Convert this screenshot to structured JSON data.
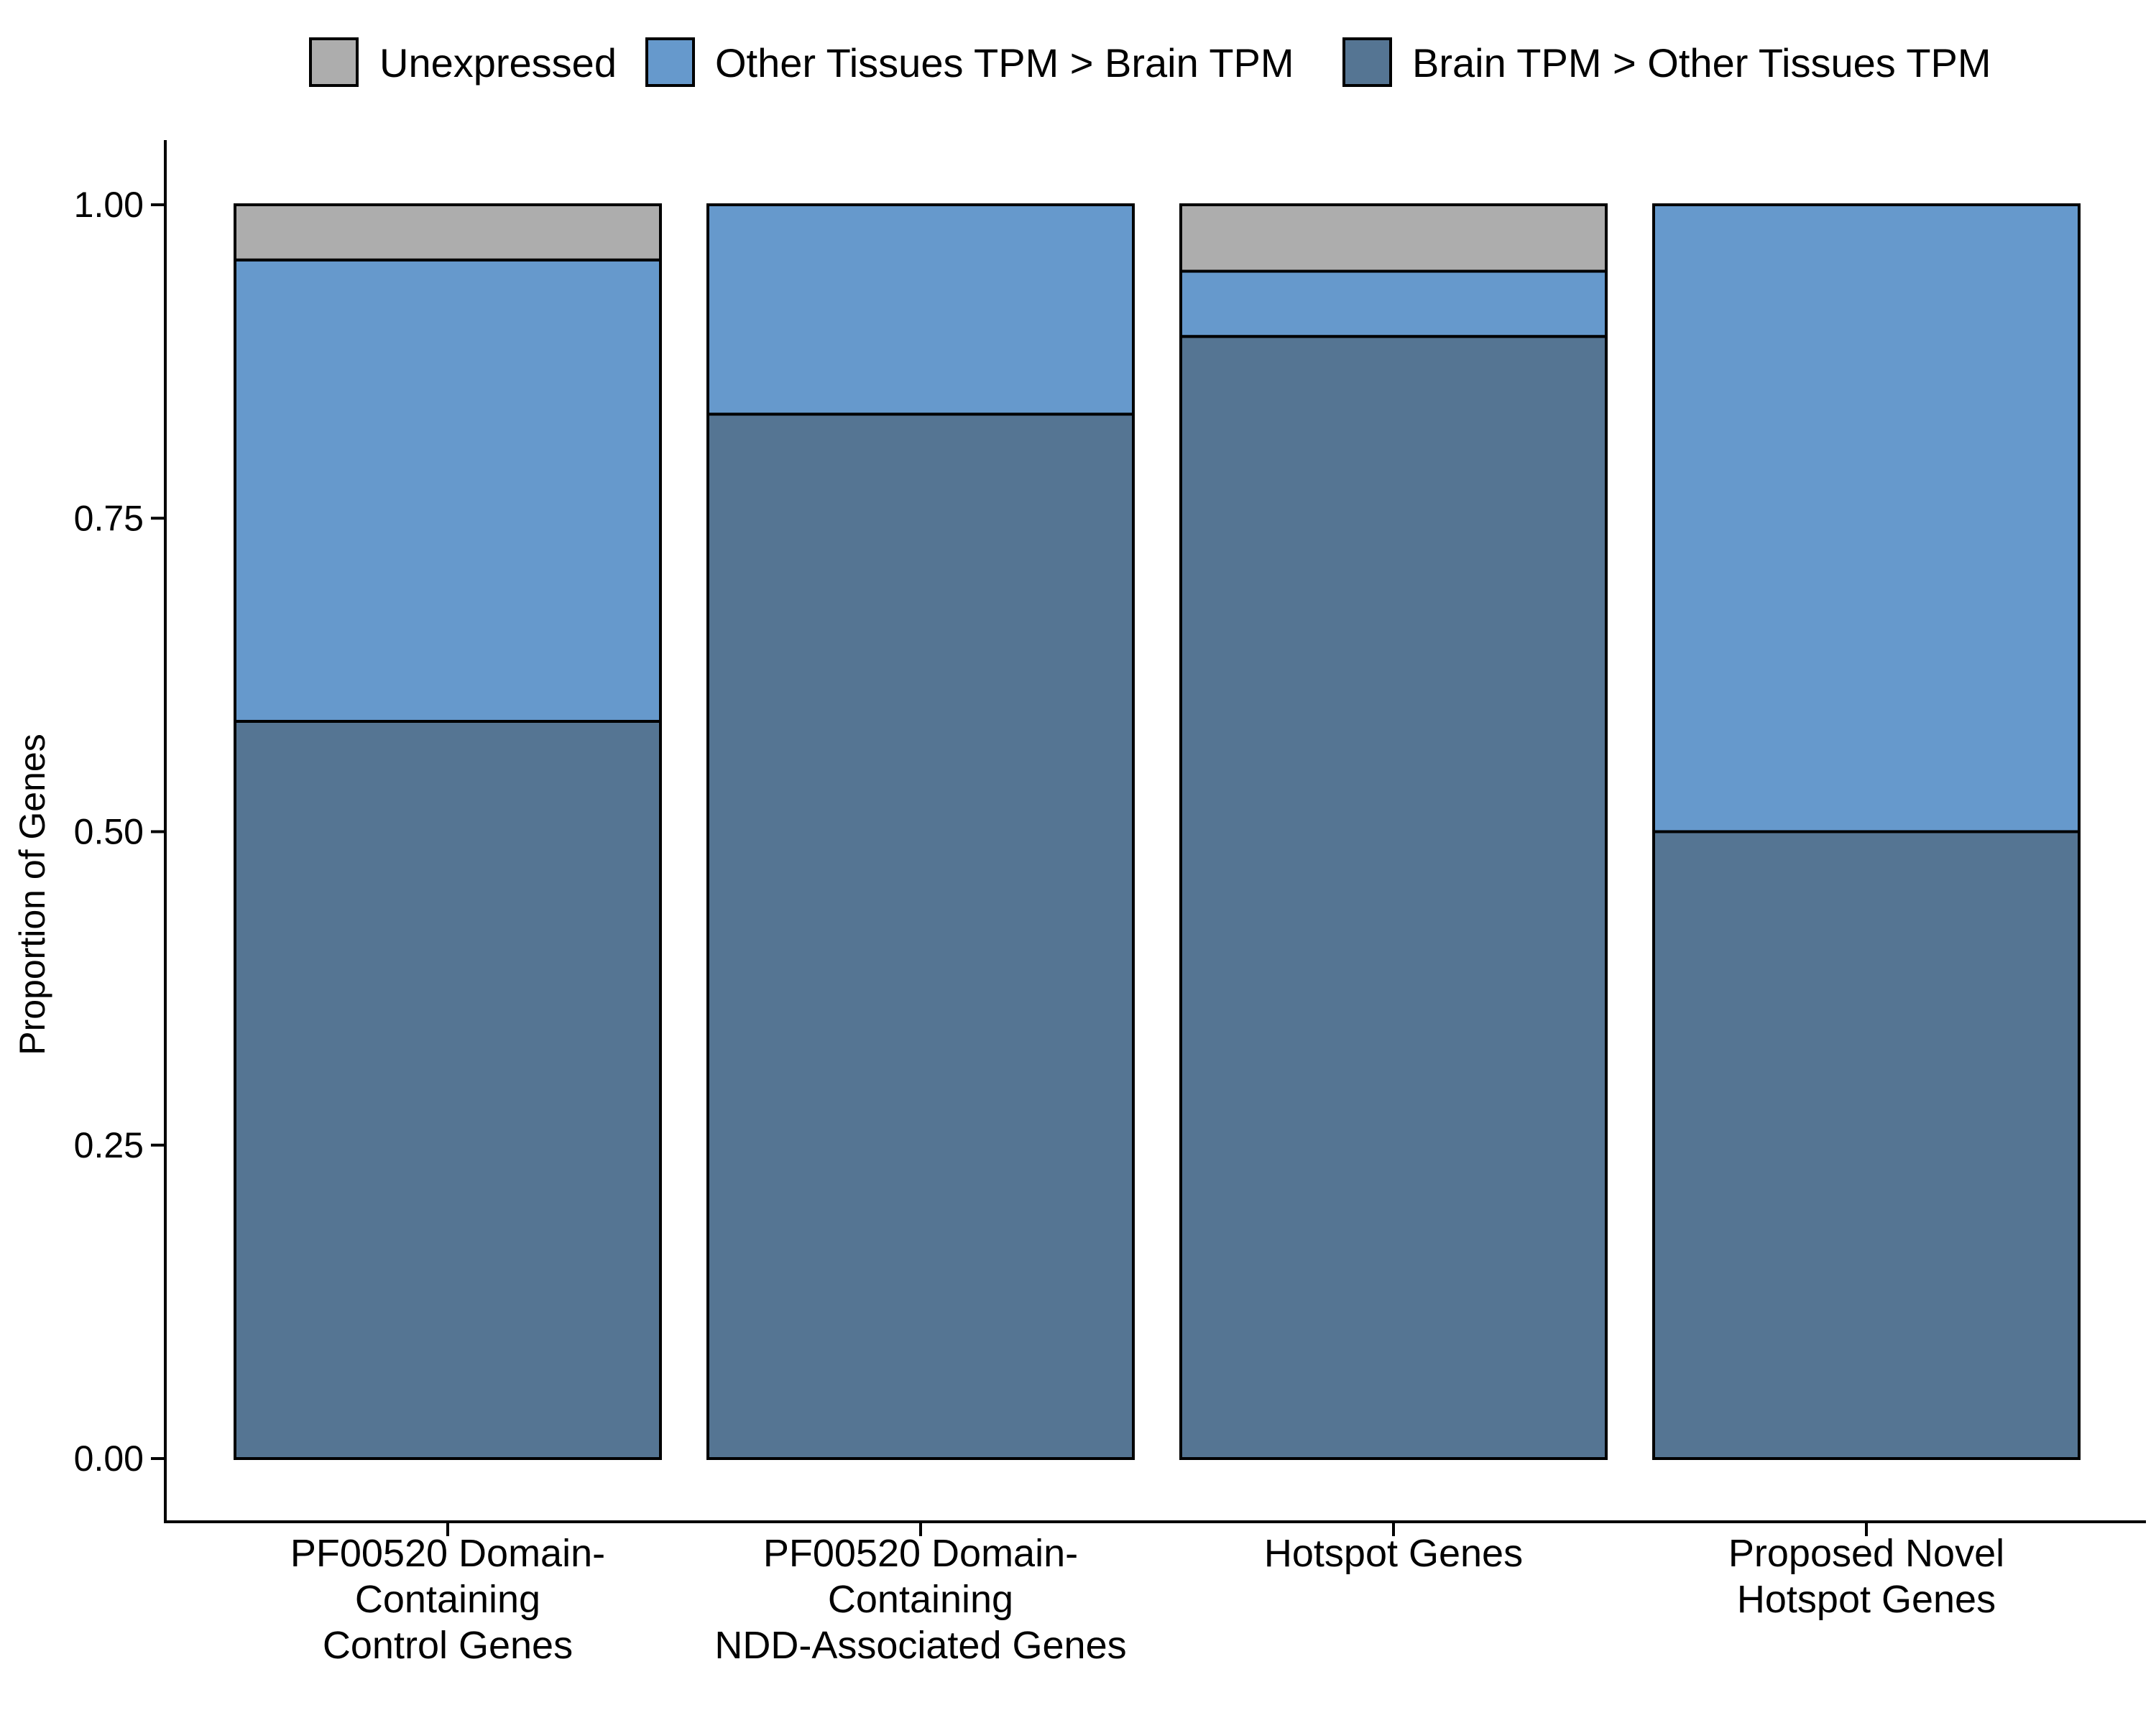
{
  "chart_data": {
    "type": "bar",
    "stacked": true,
    "categories": [
      [
        "PF00520 Domain-",
        "Containing",
        "Control Genes"
      ],
      [
        "PF00520 Domain-",
        "Containing",
        "NDD-Associated Genes"
      ],
      [
        "Hotspot Genes"
      ],
      [
        "Proposed Novel",
        "Hotspot Genes"
      ]
    ],
    "series": [
      {
        "name": "Brain TPM > Other Tissues TPM",
        "color": "#557593",
        "values": [
          0.588,
          0.833,
          0.895,
          0.5
        ]
      },
      {
        "name": "Other Tissues TPM > Brain TPM",
        "color": "#6699cc",
        "values": [
          0.368,
          0.167,
          0.052,
          0.5
        ]
      },
      {
        "name": "Unexpressed",
        "color": "#adadad",
        "values": [
          0.044,
          0.0,
          0.053,
          0.0
        ]
      }
    ],
    "legend_order": [
      "Unexpressed",
      "Other Tissues TPM > Brain TPM",
      "Brain TPM > Other Tissues TPM"
    ],
    "legend_position": "top",
    "ylabel": "Proportion of Genes",
    "xlabel": "",
    "ylim": [
      -0.05,
      1.05
    ],
    "yticks": [
      0.0,
      0.25,
      0.5,
      0.75,
      1.0
    ],
    "ytick_labels": [
      "0.00",
      "0.25",
      "0.50",
      "0.75",
      "1.00"
    ],
    "grid": false
  }
}
